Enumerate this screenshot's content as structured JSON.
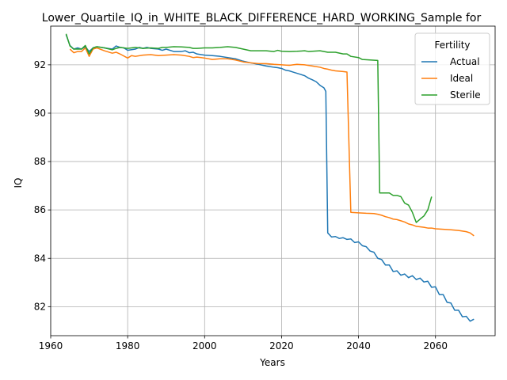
{
  "chart_data": {
    "type": "line",
    "title": "Lower_Quartile_IQ_in_WHITE_BLACK_DIFFERENCE_HARD_WORKING_Sample for",
    "xlabel": "Years",
    "ylabel": "IQ",
    "xlim": [
      1960,
      2075.5
    ],
    "ylim": [
      80.8,
      93.6
    ],
    "xticks": [
      1960,
      1980,
      2000,
      2020,
      2040,
      2060
    ],
    "yticks": [
      82,
      84,
      86,
      88,
      90,
      92
    ],
    "grid": true,
    "legend": {
      "title": "Fertility",
      "placement": "top-right"
    },
    "series": [
      {
        "name": "Actual",
        "color": "#1f77b4",
        "points": [
          [
            1964,
            93.25
          ],
          [
            1965,
            92.8
          ],
          [
            1966,
            92.65
          ],
          [
            1967,
            92.7
          ],
          [
            1968,
            92.65
          ],
          [
            1969,
            92.75
          ],
          [
            1970,
            92.55
          ],
          [
            1971,
            92.7
          ],
          [
            1972,
            92.75
          ],
          [
            1974,
            92.7
          ],
          [
            1976,
            92.65
          ],
          [
            1977,
            92.78
          ],
          [
            1978,
            92.72
          ],
          [
            1979,
            92.7
          ],
          [
            1980,
            92.6
          ],
          [
            1982,
            92.65
          ],
          [
            1983,
            92.72
          ],
          [
            1984,
            92.68
          ],
          [
            1985,
            92.72
          ],
          [
            1986,
            92.68
          ],
          [
            1988,
            92.65
          ],
          [
            1989,
            92.6
          ],
          [
            1990,
            92.65
          ],
          [
            1992,
            92.55
          ],
          [
            1994,
            92.55
          ],
          [
            1995,
            92.58
          ],
          [
            1996,
            92.5
          ],
          [
            1997,
            92.52
          ],
          [
            1998,
            92.45
          ],
          [
            2000,
            92.4
          ],
          [
            2002,
            92.38
          ],
          [
            2004,
            92.35
          ],
          [
            2006,
            92.3
          ],
          [
            2008,
            92.25
          ],
          [
            2010,
            92.15
          ],
          [
            2012,
            92.08
          ],
          [
            2014,
            92.02
          ],
          [
            2016,
            91.95
          ],
          [
            2018,
            91.9
          ],
          [
            2019,
            91.88
          ],
          [
            2020,
            91.85
          ],
          [
            2021,
            91.78
          ],
          [
            2022,
            91.75
          ],
          [
            2023,
            91.7
          ],
          [
            2024,
            91.65
          ],
          [
            2025,
            91.6
          ],
          [
            2026,
            91.55
          ],
          [
            2027,
            91.45
          ],
          [
            2028,
            91.38
          ],
          [
            2029,
            91.3
          ],
          [
            2030,
            91.15
          ],
          [
            2031,
            91.05
          ],
          [
            2031.5,
            90.9
          ],
          [
            2032,
            85.05
          ],
          [
            2033,
            84.88
          ],
          [
            2034,
            84.9
          ],
          [
            2035,
            84.82
          ],
          [
            2036,
            84.85
          ],
          [
            2037,
            84.78
          ],
          [
            2038,
            84.8
          ],
          [
            2039,
            84.65
          ],
          [
            2040,
            84.68
          ],
          [
            2041,
            84.52
          ],
          [
            2042,
            84.48
          ],
          [
            2043,
            84.3
          ],
          [
            2044,
            84.25
          ],
          [
            2045,
            84.0
          ],
          [
            2046,
            83.95
          ],
          [
            2047,
            83.72
          ],
          [
            2048,
            83.72
          ],
          [
            2049,
            83.45
          ],
          [
            2050,
            83.48
          ],
          [
            2051,
            83.3
          ],
          [
            2052,
            83.35
          ],
          [
            2053,
            83.2
          ],
          [
            2054,
            83.28
          ],
          [
            2055,
            83.12
          ],
          [
            2056,
            83.18
          ],
          [
            2057,
            83.02
          ],
          [
            2058,
            83.05
          ],
          [
            2059,
            82.8
          ],
          [
            2060,
            82.82
          ],
          [
            2061,
            82.5
          ],
          [
            2062,
            82.5
          ],
          [
            2063,
            82.18
          ],
          [
            2064,
            82.15
          ],
          [
            2065,
            81.85
          ],
          [
            2066,
            81.85
          ],
          [
            2067,
            81.58
          ],
          [
            2068,
            81.6
          ],
          [
            2069,
            81.4
          ],
          [
            2070,
            81.48
          ]
        ]
      },
      {
        "name": "Ideal",
        "color": "#ff7f0e",
        "points": [
          [
            1965,
            92.65
          ],
          [
            1966,
            92.5
          ],
          [
            1967,
            92.55
          ],
          [
            1968,
            92.55
          ],
          [
            1969,
            92.7
          ],
          [
            1970,
            92.35
          ],
          [
            1971,
            92.65
          ],
          [
            1972,
            92.7
          ],
          [
            1974,
            92.58
          ],
          [
            1976,
            92.48
          ],
          [
            1977,
            92.52
          ],
          [
            1978,
            92.45
          ],
          [
            1980,
            92.28
          ],
          [
            1981,
            92.38
          ],
          [
            1982,
            92.35
          ],
          [
            1984,
            92.4
          ],
          [
            1986,
            92.42
          ],
          [
            1988,
            92.38
          ],
          [
            1990,
            92.4
          ],
          [
            1992,
            92.42
          ],
          [
            1994,
            92.4
          ],
          [
            1996,
            92.35
          ],
          [
            1997,
            92.3
          ],
          [
            1998,
            92.32
          ],
          [
            2000,
            92.28
          ],
          [
            2002,
            92.22
          ],
          [
            2004,
            92.25
          ],
          [
            2006,
            92.25
          ],
          [
            2008,
            92.2
          ],
          [
            2010,
            92.12
          ],
          [
            2012,
            92.08
          ],
          [
            2014,
            92.05
          ],
          [
            2016,
            92.05
          ],
          [
            2018,
            92.02
          ],
          [
            2020,
            92.0
          ],
          [
            2022,
            91.98
          ],
          [
            2023,
            92.0
          ],
          [
            2024,
            92.02
          ],
          [
            2026,
            92.0
          ],
          [
            2028,
            91.95
          ],
          [
            2030,
            91.9
          ],
          [
            2031,
            91.85
          ],
          [
            2032,
            91.82
          ],
          [
            2033,
            91.78
          ],
          [
            2034,
            91.75
          ],
          [
            2036,
            91.72
          ],
          [
            2037,
            91.7
          ],
          [
            2038,
            85.9
          ],
          [
            2040,
            85.88
          ],
          [
            2042,
            85.86
          ],
          [
            2044,
            85.85
          ],
          [
            2045,
            85.82
          ],
          [
            2046,
            85.78
          ],
          [
            2047,
            85.72
          ],
          [
            2048,
            85.68
          ],
          [
            2049,
            85.62
          ],
          [
            2050,
            85.6
          ],
          [
            2051,
            85.55
          ],
          [
            2052,
            85.5
          ],
          [
            2053,
            85.42
          ],
          [
            2054,
            85.38
          ],
          [
            2055,
            85.32
          ],
          [
            2056,
            85.3
          ],
          [
            2057,
            85.28
          ],
          [
            2058,
            85.25
          ],
          [
            2059,
            85.25
          ],
          [
            2060,
            85.22
          ],
          [
            2062,
            85.2
          ],
          [
            2064,
            85.18
          ],
          [
            2066,
            85.15
          ],
          [
            2068,
            85.1
          ],
          [
            2069,
            85.05
          ],
          [
            2070,
            84.93
          ]
        ]
      },
      {
        "name": "Sterile",
        "color": "#2ca02c",
        "points": [
          [
            1964,
            93.28
          ],
          [
            1965,
            92.78
          ],
          [
            1966,
            92.65
          ],
          [
            1967,
            92.65
          ],
          [
            1968,
            92.65
          ],
          [
            1969,
            92.8
          ],
          [
            1970,
            92.45
          ],
          [
            1971,
            92.7
          ],
          [
            1972,
            92.75
          ],
          [
            1974,
            92.7
          ],
          [
            1976,
            92.62
          ],
          [
            1977,
            92.68
          ],
          [
            1978,
            92.72
          ],
          [
            1980,
            92.68
          ],
          [
            1982,
            92.72
          ],
          [
            1984,
            92.68
          ],
          [
            1986,
            92.7
          ],
          [
            1988,
            92.68
          ],
          [
            1989,
            92.72
          ],
          [
            1990,
            92.72
          ],
          [
            1992,
            92.75
          ],
          [
            1994,
            92.74
          ],
          [
            1996,
            92.72
          ],
          [
            1997,
            92.68
          ],
          [
            1998,
            92.68
          ],
          [
            2000,
            92.7
          ],
          [
            2002,
            92.7
          ],
          [
            2004,
            92.72
          ],
          [
            2006,
            92.75
          ],
          [
            2008,
            92.72
          ],
          [
            2010,
            92.65
          ],
          [
            2012,
            92.58
          ],
          [
            2014,
            92.58
          ],
          [
            2016,
            92.58
          ],
          [
            2018,
            92.55
          ],
          [
            2019,
            92.6
          ],
          [
            2020,
            92.56
          ],
          [
            2022,
            92.55
          ],
          [
            2024,
            92.56
          ],
          [
            2026,
            92.58
          ],
          [
            2027,
            92.55
          ],
          [
            2028,
            92.56
          ],
          [
            2030,
            92.58
          ],
          [
            2032,
            92.52
          ],
          [
            2034,
            92.52
          ],
          [
            2036,
            92.45
          ],
          [
            2037,
            92.45
          ],
          [
            2038,
            92.35
          ],
          [
            2040,
            92.3
          ],
          [
            2041,
            92.22
          ],
          [
            2043,
            92.2
          ],
          [
            2045,
            92.18
          ],
          [
            2045.5,
            86.7
          ],
          [
            2048,
            86.7
          ],
          [
            2049,
            86.6
          ],
          [
            2050,
            86.6
          ],
          [
            2051,
            86.55
          ],
          [
            2052,
            86.28
          ],
          [
            2053,
            86.2
          ],
          [
            2054,
            85.9
          ],
          [
            2055,
            85.48
          ],
          [
            2056,
            85.62
          ],
          [
            2057,
            85.75
          ],
          [
            2058,
            86.0
          ],
          [
            2059,
            86.55
          ]
        ]
      }
    ]
  }
}
